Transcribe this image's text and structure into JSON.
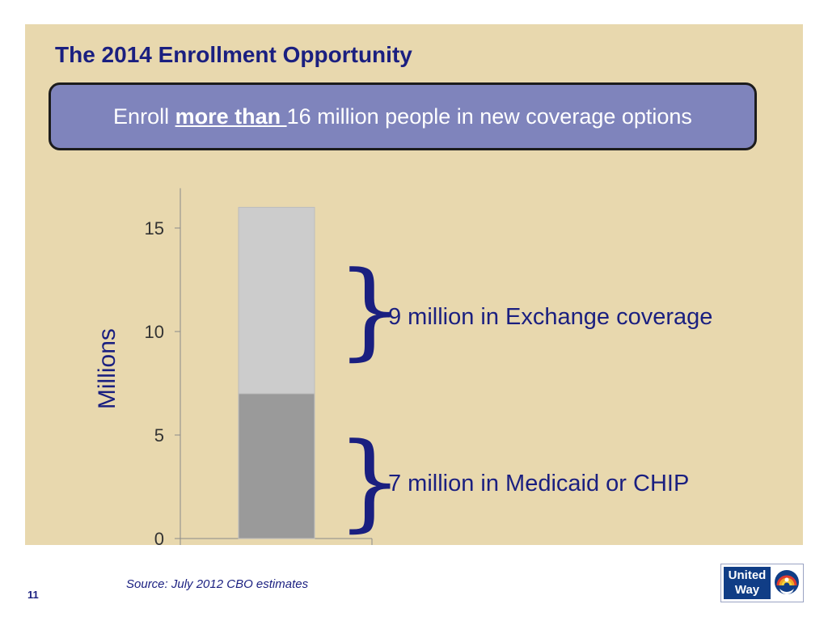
{
  "slide": {
    "title": "The 2014 Enrollment Opportunity",
    "headline_pre": "Enroll ",
    "headline_emphasis": "more than ",
    "headline_post": "16 million people in new coverage options",
    "slide_number": "11",
    "source": "Source: July 2012 CBO estimates",
    "logo_line1": "United",
    "logo_line2": "Way",
    "logo_icon": "hand-rainbow-logo-icon"
  },
  "chart_data": {
    "type": "bar",
    "stacked": true,
    "categories": [
      ""
    ],
    "series": [
      {
        "name": "",
        "values": [
          7
        ],
        "color": "#9a9a9a"
      },
      {
        "name": "",
        "values": [
          9
        ],
        "color": "#cccccc"
      }
    ],
    "ylabel": "Millions",
    "ylim": [
      0,
      17
    ],
    "yticks": [
      0,
      5,
      10,
      15
    ],
    "grid": false,
    "annotations": [
      "9 million in Exchange coverage",
      "7 million in Medicaid or CHIP"
    ]
  }
}
